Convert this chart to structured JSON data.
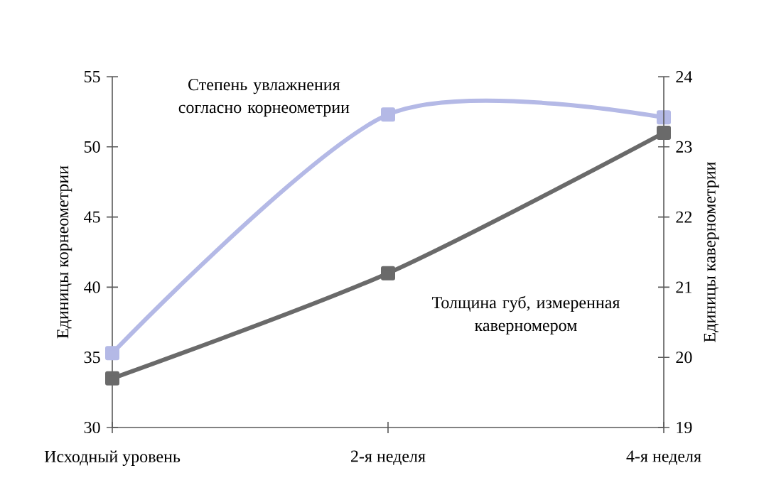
{
  "chart_data": {
    "type": "line",
    "ylabel": "Единицы корнеометрии",
    "y2label": "Единицы кавернометрии",
    "categories": [
      "Исходный уровень",
      "2-я неделя",
      "4-я неделя"
    ],
    "ylim": [
      30,
      55
    ],
    "yticks": [
      30,
      35,
      40,
      45,
      50,
      55
    ],
    "y2lim": [
      19,
      24
    ],
    "y2ticks": [
      19,
      20,
      21,
      22,
      23,
      24
    ],
    "marker": "square",
    "grid": false,
    "series": [
      {
        "name": "Степень увлажнения согласно корнеометрии",
        "color": "#b4b9e6",
        "values": [
          35.3,
          52.3,
          52.1
        ]
      },
      {
        "name": "Толщина губ, измеренная каверномером",
        "color": "#6a6a6a",
        "values": [
          19.7,
          21.2,
          23.2
        ],
        "axis": "y2"
      }
    ]
  }
}
